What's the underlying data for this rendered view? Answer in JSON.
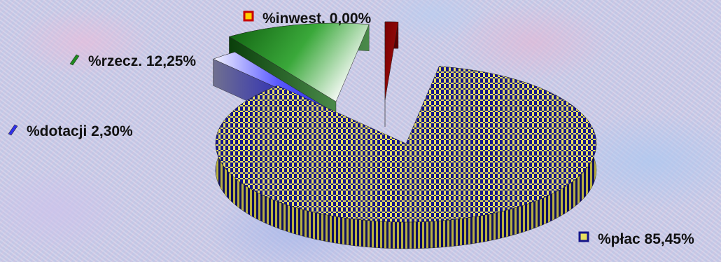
{
  "chart_data": {
    "type": "pie",
    "title": "",
    "slices": [
      {
        "label": "%płac 85,45%",
        "name": "%płac",
        "value": 85.45,
        "color": "#1a1a8c",
        "color2": "#e8e060"
      },
      {
        "label": "%dotacji 2,30%",
        "name": "%dotacji",
        "value": 2.3,
        "color": "#3030e0"
      },
      {
        "label": "%rzecz. 12,25%",
        "name": "%rzecz.",
        "value": 12.25,
        "color": "#1f8a1f"
      },
      {
        "label": "%inwest. 0,00%",
        "name": "%inwest.",
        "value": 0.0,
        "color": "#8b0000"
      }
    ]
  }
}
